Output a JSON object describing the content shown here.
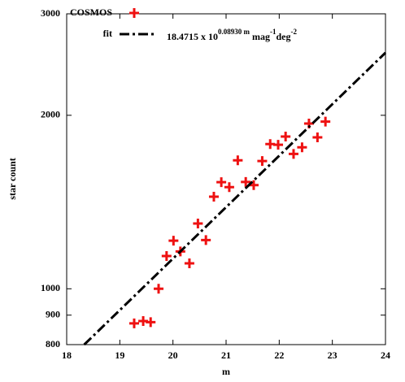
{
  "chart_data": {
    "type": "scatter",
    "x_label": "m",
    "y_label": "star count",
    "xlim": [
      18,
      24
    ],
    "xticks": [
      18,
      19,
      20,
      21,
      22,
      23,
      24
    ],
    "ylim": [
      800,
      3000
    ],
    "yticks": [
      800,
      900,
      1000,
      2000,
      3000
    ],
    "log_y": true,
    "grid": false,
    "legend": "top-left",
    "series": [
      {
        "name": "COSMOS",
        "color": "#ee1111",
        "marker": "plus",
        "x": [
          19.27,
          19.44,
          19.58,
          19.73,
          19.88,
          20.01,
          20.14,
          20.31,
          20.47,
          20.62,
          20.77,
          20.91,
          21.06,
          21.22,
          21.37,
          21.52,
          21.68,
          21.83,
          21.98,
          22.12,
          22.27,
          22.43,
          22.56,
          22.72,
          22.87
        ],
        "values": [
          871,
          879,
          875,
          1000,
          1140,
          1212,
          1161,
          1107,
          1298,
          1215,
          1445,
          1531,
          1501,
          1671,
          1532,
          1513,
          1666,
          1783,
          1778,
          1837,
          1714,
          1760,
          1935,
          1831,
          1950
        ]
      },
      {
        "name": "fit",
        "color": "#000000",
        "marker": "dashdot",
        "x": [
          18.33,
          24
        ],
        "values": [
          800,
          2568
        ]
      }
    ],
    "annotation": [
      {
        "text": "18.4715 x 10",
        "sup": false
      },
      {
        "text": "0.08930 m",
        "sup": true
      },
      {
        "text": " mag",
        "sup": false
      },
      {
        "text": "-1",
        "sup": true
      },
      {
        "text": "deg",
        "sup": false
      },
      {
        "text": "-2",
        "sup": true
      }
    ]
  }
}
